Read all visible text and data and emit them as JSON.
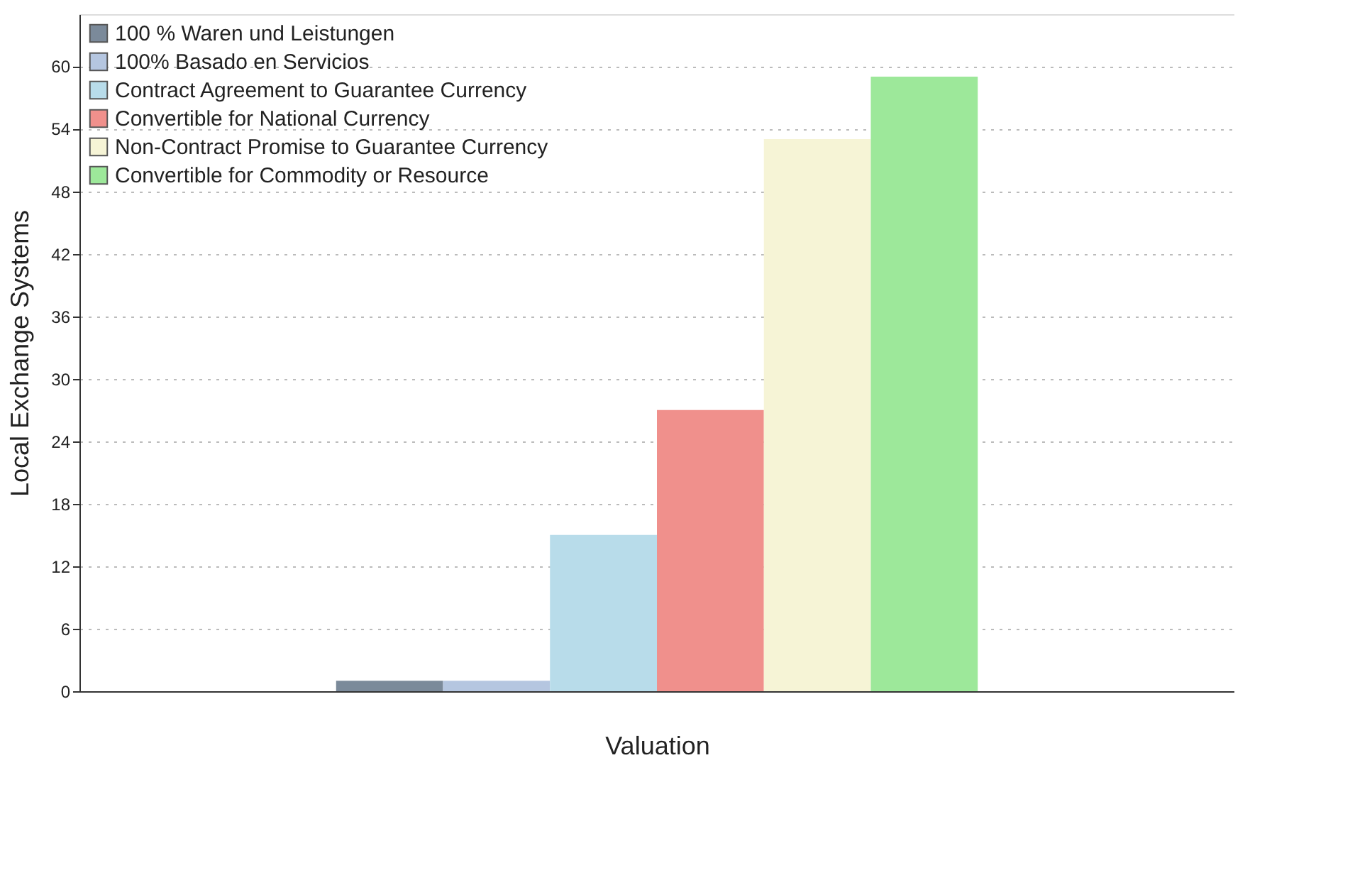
{
  "chart_data": {
    "type": "bar",
    "xlabel": "Valuation",
    "ylabel": "Local Exchange Systems",
    "categories": [
      null
    ],
    "series": [
      {
        "name": "100 % Waren und Leistungen",
        "color": "#7b8a9a",
        "values": [
          1
        ]
      },
      {
        "name": "100% Basado en Servicios",
        "color": "#b5c6e0",
        "values": [
          1
        ]
      },
      {
        "name": "Contract Agreement to Guarantee Currency",
        "color": "#b8dcea",
        "values": [
          15
        ]
      },
      {
        "name": "Convertible for National Currency",
        "color": "#f0908c",
        "values": [
          27
        ]
      },
      {
        "name": "Non-Contract Promise to Guarantee Currency",
        "color": "#f6f4d6",
        "values": [
          53
        ]
      },
      {
        "name": "Convertible for Commodity or Resource",
        "color": "#9de89a",
        "values": [
          59
        ]
      }
    ],
    "ylim": [
      0,
      65
    ],
    "yticks": [
      0,
      6,
      12,
      18,
      24,
      30,
      36,
      42,
      48,
      54,
      60
    ],
    "grid": "y",
    "legend": "top left",
    "tick_labels": "y"
  }
}
